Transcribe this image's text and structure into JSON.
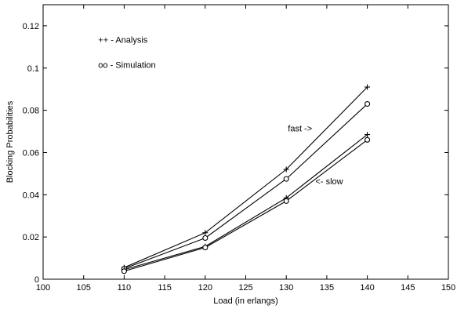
{
  "chart_data": {
    "type": "line",
    "title": "",
    "xlabel": "Load (in erlangs)",
    "ylabel": "Blocking Probabilities",
    "xlim": [
      100,
      150
    ],
    "ylim": [
      0,
      0.13
    ],
    "xticks": [
      100,
      105,
      110,
      115,
      120,
      125,
      130,
      135,
      140,
      145,
      150
    ],
    "yticks": [
      0,
      0.02,
      0.04,
      0.06,
      0.08,
      0.1,
      0.12
    ],
    "xtick_labels": [
      "100",
      "105",
      "110",
      "115",
      "120",
      "125",
      "130",
      "135",
      "140",
      "145",
      "150"
    ],
    "ytick_labels": [
      "0",
      "0.02",
      "0.04",
      "0.06",
      "0.08",
      "0.1",
      "0.12"
    ],
    "grid": false,
    "x": [
      110,
      120,
      130,
      140
    ],
    "series": [
      {
        "marker": "plus",
        "values": [
          0.0055,
          0.022,
          0.052,
          0.091
        ]
      },
      {
        "marker": "circle",
        "values": [
          0.005,
          0.0195,
          0.0475,
          0.083
        ]
      },
      {
        "marker": "plus",
        "values": [
          0.0045,
          0.0155,
          0.0385,
          0.0685
        ]
      },
      {
        "marker": "circle",
        "values": [
          0.0038,
          0.015,
          0.037,
          0.066
        ]
      }
    ],
    "annotations": [
      {
        "text": "++ - Analysis",
        "x": 106.8,
        "y": 0.1135
      },
      {
        "text": "oo - Simulation",
        "x": 106.8,
        "y": 0.1015
      },
      {
        "text": "fast ->",
        "x": 130.2,
        "y": 0.0715
      },
      {
        "text": "<- slow",
        "x": 133.6,
        "y": 0.0465
      }
    ]
  }
}
